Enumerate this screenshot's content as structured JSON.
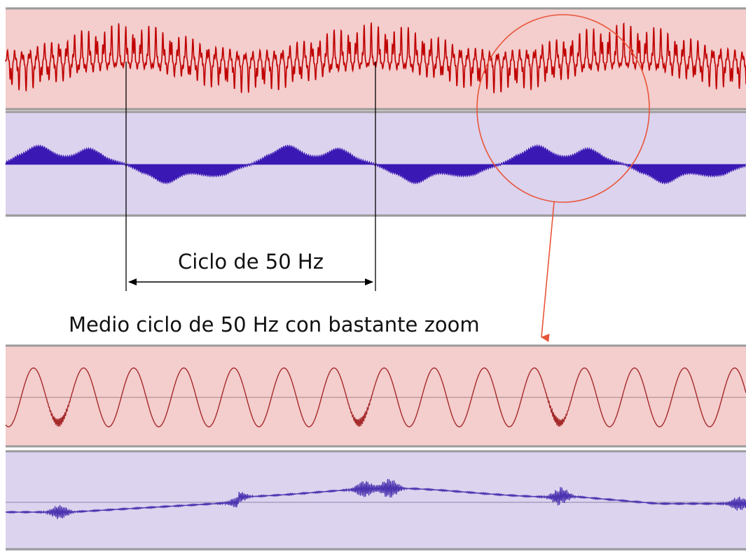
{
  "labels": {
    "cycle": "Ciclo de 50 Hz",
    "zoom": "Medio ciclo de 50 Hz con bastante zoom"
  },
  "colors": {
    "red_track_bg": "#f4cdcd",
    "purple_track_bg": "#dcd3ee",
    "red_wave": "#c00000",
    "purple_wave": "#3a18b4",
    "zoom_red_wave": "#a52a2a",
    "zoom_purple_wave": "#4b33b0",
    "track_border": "#9a9a9a",
    "highlight_circle": "#e8563a",
    "annotation_line": "#000000"
  },
  "icons": {
    "zoom_marker": "circle-highlight",
    "pointer": "arrow-down",
    "cycle_span": "double-headed-arrow"
  }
}
